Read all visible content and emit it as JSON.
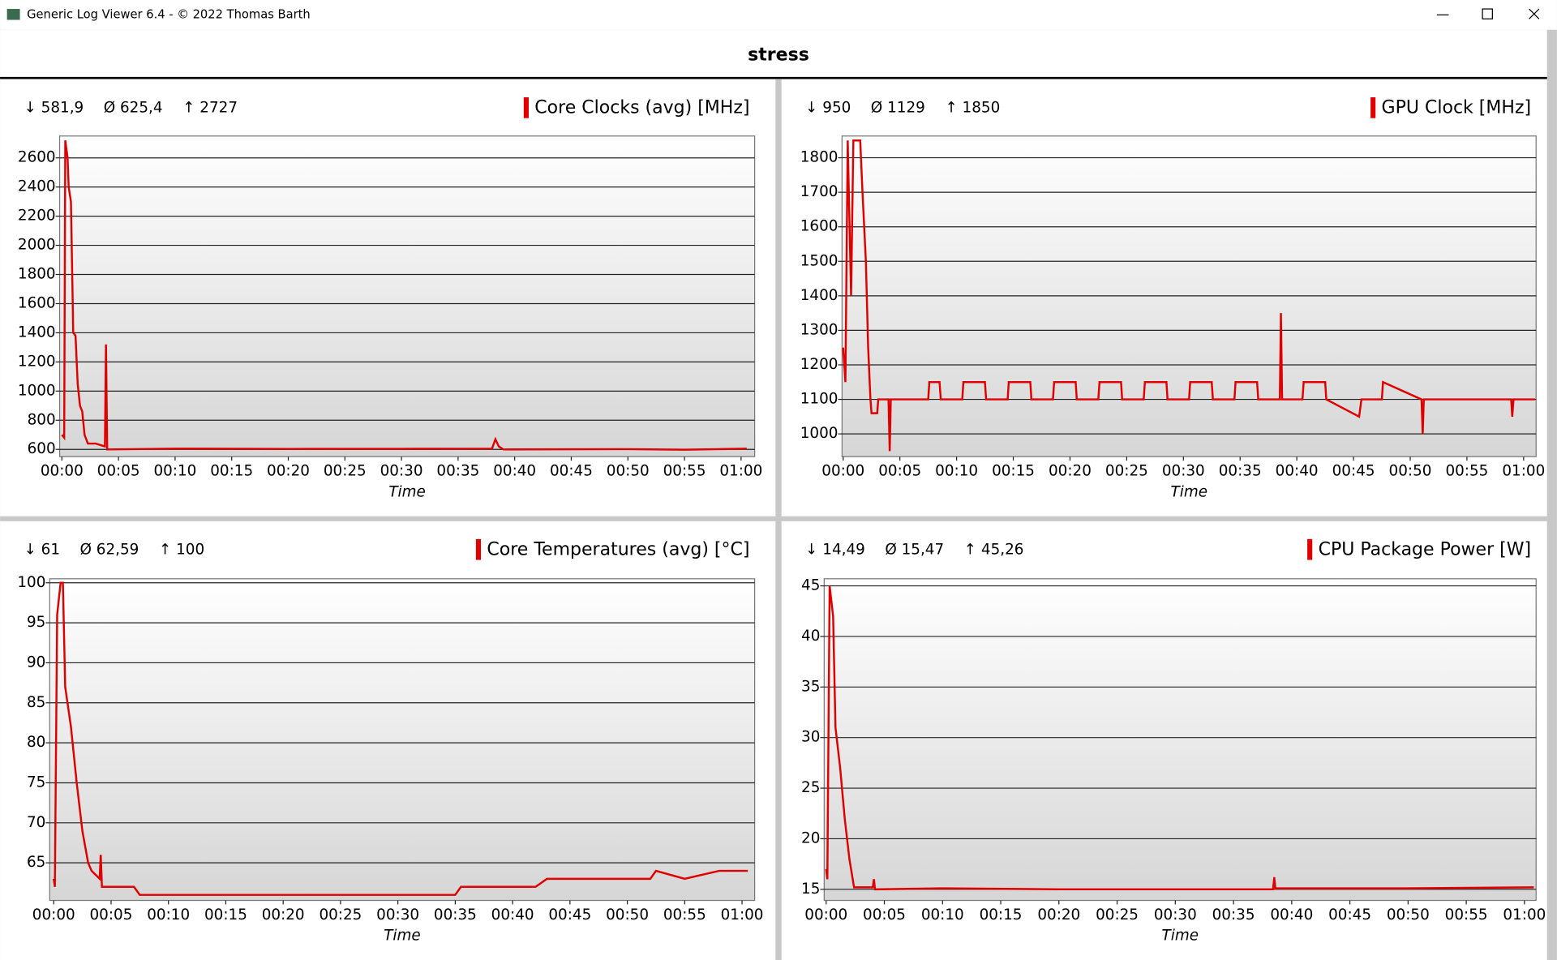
{
  "window": {
    "title": "Generic Log Viewer 6.4 - © 2022 Thomas Barth"
  },
  "header": {
    "title": "stress"
  },
  "chart_data": [
    {
      "type": "line",
      "stats": [
        "↓ 581,9",
        "Ø 625,4",
        "↑ 2727"
      ],
      "xlabel": "Time",
      "x": [
        0,
        0.2,
        0.3,
        0.5,
        0.6,
        0.8,
        1.0,
        1.2,
        1.4,
        1.6,
        1.8,
        2.0,
        2.3,
        3.0,
        3.8,
        3.9,
        4.0,
        10,
        20,
        30,
        38,
        38.3,
        38.6,
        39,
        50,
        55,
        58,
        60.5
      ],
      "series": [
        {
          "name": "Core Clocks (avg) [MHz]",
          "color": "#e00000",
          "values": [
            700,
            680,
            2720,
            2600,
            2400,
            2300,
            1400,
            1380,
            1050,
            900,
            860,
            700,
            640,
            640,
            620,
            1320,
            600,
            605,
            603,
            604,
            605,
            670,
            620,
            600,
            602,
            598,
            602,
            605
          ]
        }
      ],
      "xlim": [
        -0.2,
        61.2
      ],
      "ylim": [
        550,
        2750
      ],
      "yticks": [
        600,
        800,
        1000,
        1200,
        1400,
        1600,
        1800,
        2000,
        2200,
        2400,
        2600
      ],
      "xticks": [
        {
          "value": 0,
          "label": "00:00"
        },
        {
          "value": 5,
          "label": "00:05"
        },
        {
          "value": 10,
          "label": "00:10"
        },
        {
          "value": 15,
          "label": "00:15"
        },
        {
          "value": 20,
          "label": "00:20"
        },
        {
          "value": 25,
          "label": "00:25"
        },
        {
          "value": 30,
          "label": "00:30"
        },
        {
          "value": 35,
          "label": "00:35"
        },
        {
          "value": 40,
          "label": "00:40"
        },
        {
          "value": 45,
          "label": "00:45"
        },
        {
          "value": 50,
          "label": "00:50"
        },
        {
          "value": 55,
          "label": "00:55"
        },
        {
          "value": 60,
          "label": "01:00"
        }
      ],
      "grid": true
    },
    {
      "type": "line",
      "stats": [
        "↓ 950",
        "Ø 1129",
        "↑ 1850"
      ],
      "xlabel": "Time",
      "x": [
        0,
        0.2,
        0.4,
        0.7,
        0.9,
        1.5,
        1.7,
        2.0,
        2.2,
        2.4,
        2.5,
        3.0,
        3.1,
        4.0,
        4.1,
        4.2,
        7.5,
        7.6,
        8.5,
        8.6,
        10.5,
        10.6,
        12.5,
        12.6,
        14.5,
        14.6,
        16.5,
        16.6,
        18.5,
        18.6,
        20.5,
        20.6,
        22.5,
        22.6,
        24.5,
        24.6,
        26.5,
        26.6,
        28.5,
        28.6,
        30.5,
        30.6,
        32.5,
        32.6,
        34.5,
        34.6,
        36.5,
        36.6,
        38.5,
        38.6,
        38.7,
        40.5,
        40.6,
        42.5,
        42.6,
        45.5,
        45.7,
        47.5,
        47.6,
        51,
        51.1,
        51.2,
        58.9,
        59,
        59.1,
        61
      ],
      "series": [
        {
          "name": "GPU Clock [MHz]",
          "color": "#e00000",
          "values": [
            1250,
            1150,
            1850,
            1400,
            1850,
            1850,
            1700,
            1500,
            1250,
            1100,
            1060,
            1060,
            1100,
            1100,
            950,
            1100,
            1100,
            1150,
            1150,
            1100,
            1100,
            1150,
            1150,
            1100,
            1100,
            1150,
            1150,
            1100,
            1100,
            1150,
            1150,
            1100,
            1100,
            1150,
            1150,
            1100,
            1100,
            1150,
            1150,
            1100,
            1100,
            1150,
            1150,
            1100,
            1100,
            1150,
            1150,
            1100,
            1100,
            1350,
            1100,
            1100,
            1150,
            1150,
            1100,
            1050,
            1100,
            1100,
            1150,
            1100,
            1000,
            1100,
            1100,
            1050,
            1100,
            1100
          ]
        }
      ],
      "xlim": [
        -0.1,
        61.1
      ],
      "ylim": [
        934,
        1863
      ],
      "yticks": [
        1000,
        1100,
        1200,
        1300,
        1400,
        1500,
        1600,
        1700,
        1800
      ],
      "xticks": [
        {
          "value": 0,
          "label": "00:00"
        },
        {
          "value": 5,
          "label": "00:05"
        },
        {
          "value": 10,
          "label": "00:10"
        },
        {
          "value": 15,
          "label": "00:15"
        },
        {
          "value": 20,
          "label": "00:20"
        },
        {
          "value": 25,
          "label": "00:25"
        },
        {
          "value": 30,
          "label": "00:30"
        },
        {
          "value": 35,
          "label": "00:35"
        },
        {
          "value": 40,
          "label": "00:40"
        },
        {
          "value": 45,
          "label": "00:45"
        },
        {
          "value": 50,
          "label": "00:50"
        },
        {
          "value": 55,
          "label": "00:55"
        },
        {
          "value": 60,
          "label": "01:00"
        }
      ],
      "grid": true
    },
    {
      "type": "line",
      "stats": [
        "↓ 61",
        "Ø 62,59",
        "↑ 100"
      ],
      "xlabel": "Time",
      "x": [
        0,
        0.1,
        0.3,
        0.6,
        0.8,
        1.0,
        1.5,
        2.0,
        2.5,
        3.0,
        3.3,
        4.0,
        4.1,
        4.2,
        7,
        7.5,
        10,
        13,
        35,
        35.5,
        37,
        38,
        42,
        43,
        50,
        52,
        52.5,
        55,
        58,
        60.5
      ],
      "series": [
        {
          "name": "Core Temperatures (avg) [°C]",
          "color": "#e00000",
          "values": [
            63,
            62,
            96,
            100,
            100,
            87,
            82,
            75,
            69,
            65,
            64,
            63,
            66,
            62,
            62,
            61,
            61,
            61,
            61,
            62,
            62,
            62,
            62,
            63,
            63,
            63,
            64,
            63,
            64,
            64
          ]
        }
      ],
      "xlim": [
        -0.35,
        61.1
      ],
      "ylim": [
        60.3,
        100.5
      ],
      "yticks": [
        65,
        70,
        75,
        80,
        85,
        90,
        95,
        100
      ],
      "xticks": [
        {
          "value": 0,
          "label": "00:00"
        },
        {
          "value": 5,
          "label": "00:05"
        },
        {
          "value": 10,
          "label": "00:10"
        },
        {
          "value": 15,
          "label": "00:15"
        },
        {
          "value": 20,
          "label": "00:20"
        },
        {
          "value": 25,
          "label": "00:25"
        },
        {
          "value": 30,
          "label": "00:30"
        },
        {
          "value": 35,
          "label": "00:35"
        },
        {
          "value": 40,
          "label": "00:40"
        },
        {
          "value": 45,
          "label": "00:45"
        },
        {
          "value": 50,
          "label": "00:50"
        },
        {
          "value": 55,
          "label": "00:55"
        },
        {
          "value": 60,
          "label": "01:00"
        }
      ],
      "grid": true
    },
    {
      "type": "line",
      "stats": [
        "↓ 14,49",
        "Ø 15,47",
        "↑ 45,26"
      ],
      "xlabel": "Time",
      "x": [
        0,
        0.1,
        0.3,
        0.6,
        0.8,
        1.2,
        1.6,
        2.0,
        2.4,
        4,
        4.1,
        4.2,
        10,
        20,
        30,
        38.4,
        38.5,
        38.6,
        50,
        60.8
      ],
      "series": [
        {
          "name": "CPU Package Power [W]",
          "color": "#e00000",
          "values": [
            17,
            16,
            45,
            42,
            31,
            27,
            22,
            18,
            15.2,
            15.2,
            16,
            15,
            15.1,
            15,
            15,
            15,
            16.2,
            15.1,
            15.1,
            15.2
          ]
        }
      ],
      "xlim": [
        -0.17,
        61.0
      ],
      "ylim": [
        13.9,
        45.7
      ],
      "yticks": [
        15,
        20,
        25,
        30,
        35,
        40,
        45
      ],
      "xticks": [
        {
          "value": 0,
          "label": "00:00"
        },
        {
          "value": 5,
          "label": "00:05"
        },
        {
          "value": 10,
          "label": "00:10"
        },
        {
          "value": 15,
          "label": "00:15"
        },
        {
          "value": 20,
          "label": "00:20"
        },
        {
          "value": 25,
          "label": "00:25"
        },
        {
          "value": 30,
          "label": "00:30"
        },
        {
          "value": 35,
          "label": "00:35"
        },
        {
          "value": 40,
          "label": "00:40"
        },
        {
          "value": 45,
          "label": "00:45"
        },
        {
          "value": 50,
          "label": "00:50"
        },
        {
          "value": 55,
          "label": "00:55"
        },
        {
          "value": 60,
          "label": "01:00"
        }
      ],
      "grid": true
    }
  ]
}
